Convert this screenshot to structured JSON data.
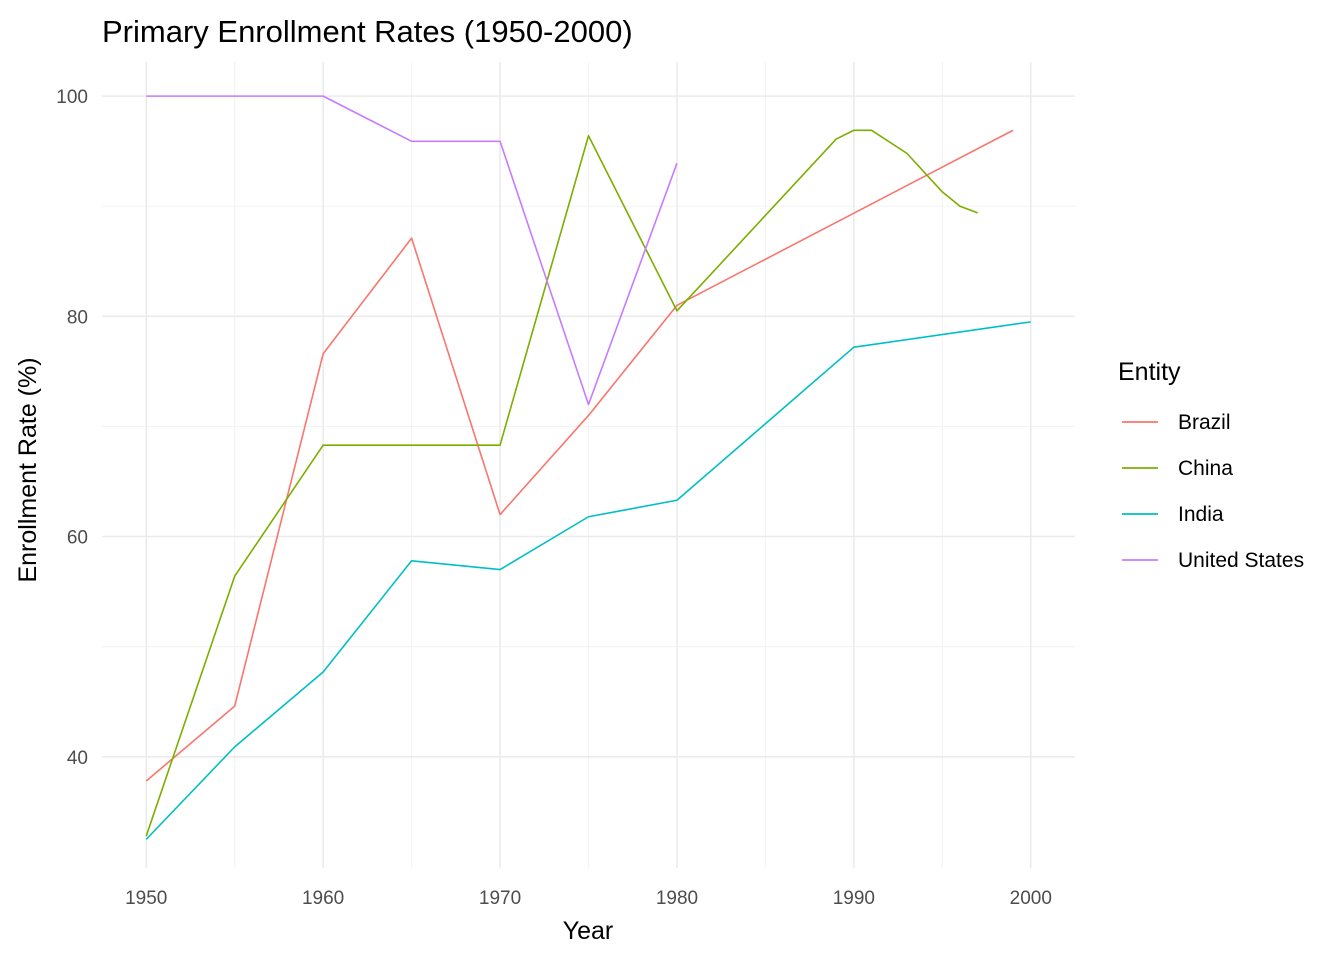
{
  "chart_data": {
    "type": "line",
    "title": "Primary Enrollment Rates (1950-2000)",
    "xlabel": "Year",
    "ylabel": "Enrollment Rate (%)",
    "xlim": [
      1947.5,
      2002.5
    ],
    "ylim": [
      29.9,
      103.1
    ],
    "x_ticks": [
      1950,
      1960,
      1970,
      1980,
      1990,
      2000
    ],
    "x_tick_labels": [
      "1950",
      "1960",
      "1970",
      "1980",
      "1990",
      "2000"
    ],
    "x_minor_ticks": [
      1955,
      1965,
      1975,
      1985,
      1995
    ],
    "y_ticks": [
      40,
      60,
      80,
      100
    ],
    "y_tick_labels": [
      "40",
      "60",
      "80",
      "100"
    ],
    "y_minor_ticks": [
      50,
      70,
      90
    ],
    "grid": true,
    "legend": {
      "title": "Entity",
      "position": "right"
    },
    "series": [
      {
        "name": "Brazil",
        "color": "#F8766D",
        "points": [
          [
            1950,
            37.8
          ],
          [
            1955,
            44.6
          ],
          [
            1960,
            76.6
          ],
          [
            1965,
            87.1
          ],
          [
            1970,
            62.0
          ],
          [
            1975,
            71.0
          ],
          [
            1980,
            81.0
          ],
          [
            1999,
            96.9
          ]
        ]
      },
      {
        "name": "China",
        "color": "#7CAE00",
        "points": [
          [
            1950,
            32.8
          ],
          [
            1955,
            56.4
          ],
          [
            1960,
            68.3
          ],
          [
            1965,
            68.3
          ],
          [
            1970,
            68.3
          ],
          [
            1975,
            96.4
          ],
          [
            1980,
            80.5
          ],
          [
            1989,
            96.1
          ],
          [
            1990,
            96.9
          ],
          [
            1991,
            96.9
          ],
          [
            1993,
            94.8
          ],
          [
            1995,
            91.3
          ],
          [
            1996,
            90.0
          ],
          [
            1997,
            89.4
          ]
        ]
      },
      {
        "name": "India",
        "color": "#00BFC4",
        "points": [
          [
            1950,
            32.5
          ],
          [
            1955,
            40.9
          ],
          [
            1960,
            47.7
          ],
          [
            1965,
            57.8
          ],
          [
            1970,
            57.0
          ],
          [
            1975,
            61.8
          ],
          [
            1980,
            63.3
          ],
          [
            1990,
            77.2
          ],
          [
            2000,
            79.5
          ]
        ]
      },
      {
        "name": "United States",
        "color": "#C77CFF",
        "points": [
          [
            1950,
            100.0
          ],
          [
            1955,
            100.0
          ],
          [
            1960,
            100.0
          ],
          [
            1965,
            95.9
          ],
          [
            1970,
            95.9
          ],
          [
            1975,
            72.0
          ],
          [
            1980,
            93.9
          ]
        ]
      }
    ]
  }
}
